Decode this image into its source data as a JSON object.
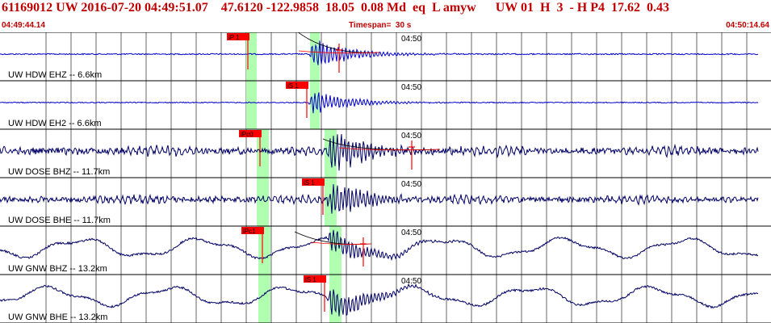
{
  "header": {
    "event_id": "61169012",
    "network": "UW",
    "datetime": "2016-07-20 04:49:51.07",
    "lat": "47.6120",
    "lon": "-122.9858",
    "depth": "18.05",
    "magnitude": "0.08",
    "mag_type": "Md",
    "event_type": "eq",
    "location_flag": "L",
    "author": "amyw",
    "quality_net": "UW",
    "quality_a": "01",
    "quality_b": "H",
    "quality_c": "3",
    "quality_d": "-",
    "quality_e": "H",
    "quality_f": "P4",
    "quality_g": "17.62",
    "quality_h": "0.43",
    "start_time": "04:49:44.14",
    "timespan": "Timespan=  30 s",
    "end_time": "04:50:14.64"
  },
  "colors": {
    "header_text": "#c00000",
    "trace_blue": "#0000cc",
    "trace_navy": "#000066",
    "pick": "#ff0000",
    "window": "#b0ffb0",
    "grid": "#000000"
  },
  "channels": [
    {
      "label": "UW HDW EHZ -- 6.6km",
      "time_label": "04:50",
      "pick_label": "iP 1",
      "trace_color": "#0000cc"
    },
    {
      "label": "UW HDW EH2 -- 6.6km",
      "time_label": "04:50",
      "pick_label": "iS 1",
      "trace_color": "#0000cc"
    },
    {
      "label": "UW DOSE BHZ -- 11.7km",
      "time_label": "04:50",
      "pick_label": "iPc0",
      "trace_color": "#000066"
    },
    {
      "label": "UW DOSE BHE -- 11.7km",
      "time_label": "04:50",
      "pick_label": "iS 1",
      "trace_color": "#000066"
    },
    {
      "label": "UW GNW BHZ -- 13.2km",
      "time_label": "04:50",
      "pick_label": "iPc1",
      "trace_color": "#000066"
    },
    {
      "label": "UW GNW BHE -- 13.2km",
      "time_label": "04:50",
      "pick_label": "iS 1",
      "trace_color": "#000066"
    }
  ]
}
